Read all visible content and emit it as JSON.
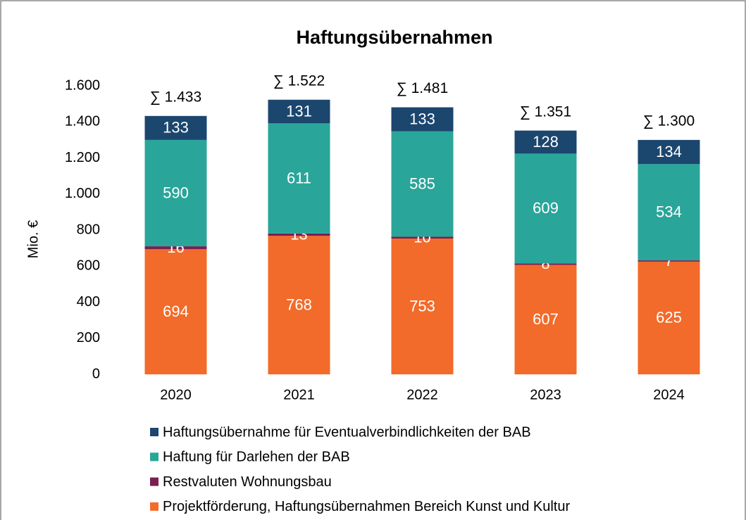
{
  "chart_data": {
    "type": "stacked_bar",
    "title": "Haftungsübernahmen",
    "y_label": "Mio. €",
    "categories": [
      "2020",
      "2021",
      "2022",
      "2023",
      "2024"
    ],
    "series": [
      {
        "name": "Projektförderung, Haftungsübernahmen Bereich Kunst und Kultur",
        "color": "#f26b2a",
        "values": [
          694,
          768,
          753,
          607,
          625
        ]
      },
      {
        "name": "Restvaluten Wohnungsbau",
        "color": "#7a1f52",
        "values": [
          16,
          13,
          10,
          8,
          7
        ]
      },
      {
        "name": "Haftung für Darlehen der BAB",
        "color": "#2aa59a",
        "values": [
          590,
          611,
          585,
          609,
          534
        ]
      },
      {
        "name": "Haftungsübernahme für Eventualverbindlichkeiten der BAB",
        "color": "#1b466e",
        "values": [
          133,
          131,
          133,
          128,
          134
        ]
      }
    ],
    "totals": {
      "values": [
        1433,
        1522,
        1481,
        1351,
        1300
      ],
      "value_labels": [
        "∑ 1.433",
        "∑ 1.522",
        "∑ 1.481",
        "∑ 1.351",
        "∑ 1.300"
      ]
    },
    "ylim": [
      0,
      1600
    ],
    "yticks": [
      0,
      200,
      400,
      600,
      800,
      {
        "value": 1000,
        "label": "1.000"
      },
      {
        "value": 1200,
        "label": "1.200"
      },
      {
        "value": 1400,
        "label": "1.400"
      },
      {
        "value": 1600,
        "label": "1.600"
      }
    ],
    "grid": false
  }
}
